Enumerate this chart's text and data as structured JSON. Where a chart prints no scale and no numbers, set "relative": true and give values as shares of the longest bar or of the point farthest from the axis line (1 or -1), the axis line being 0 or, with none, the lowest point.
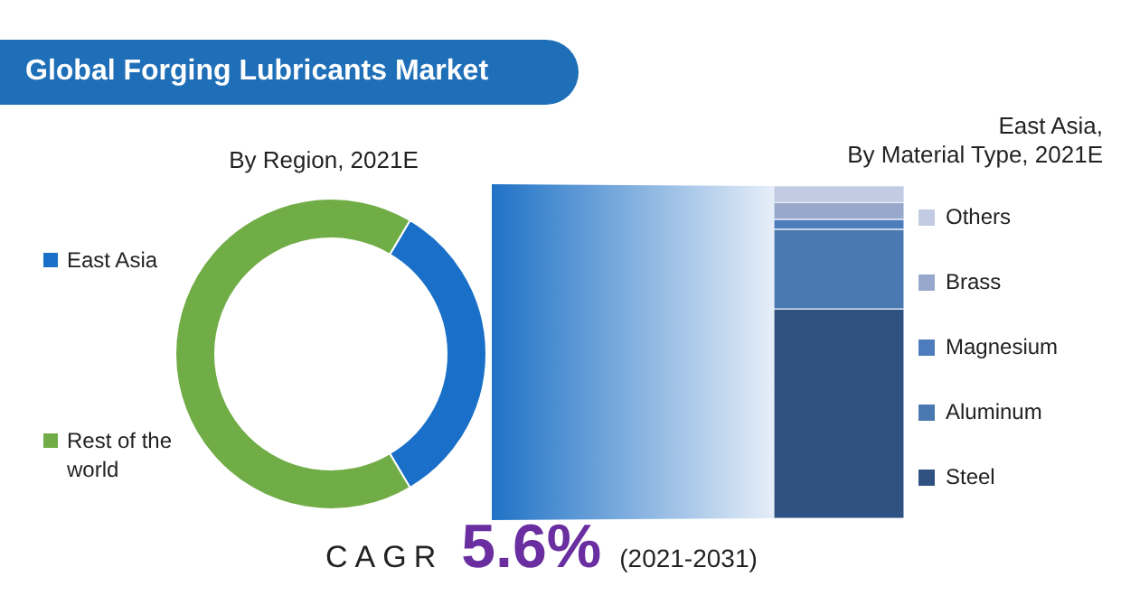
{
  "chart_data": [
    {
      "type": "donut",
      "title": "Global Forging Lubricants Market",
      "subtitle": "By Region, 2021E",
      "categories": [
        "East Asia",
        "Rest of the world"
      ],
      "values": [
        33,
        67
      ],
      "colors": [
        "#1a70c8",
        "#71ad47"
      ],
      "legend": "left",
      "annotations": [
        "CAGR",
        "5.6%",
        "(2021-2031)"
      ]
    },
    {
      "type": "bar",
      "subtitle": "East Asia, By Material Type, 2021E",
      "stacked": true,
      "relative": true,
      "categories": [
        null
      ],
      "legend": "right",
      "series": [
        {
          "name": "Steel",
          "color": "#2f5283",
          "values": [
            0.63
          ]
        },
        {
          "name": "Aluminum",
          "color": "#4a78b0",
          "values": [
            0.24
          ]
        },
        {
          "name": "Magnesium",
          "color": "#4c7cbc",
          "values": [
            0.03
          ]
        },
        {
          "name": "Brass",
          "color": "#97a8cc",
          "values": [
            0.05
          ]
        },
        {
          "name": "Others",
          "color": "#c3cbe2",
          "values": [
            0.05
          ]
        }
      ]
    }
  ]
}
